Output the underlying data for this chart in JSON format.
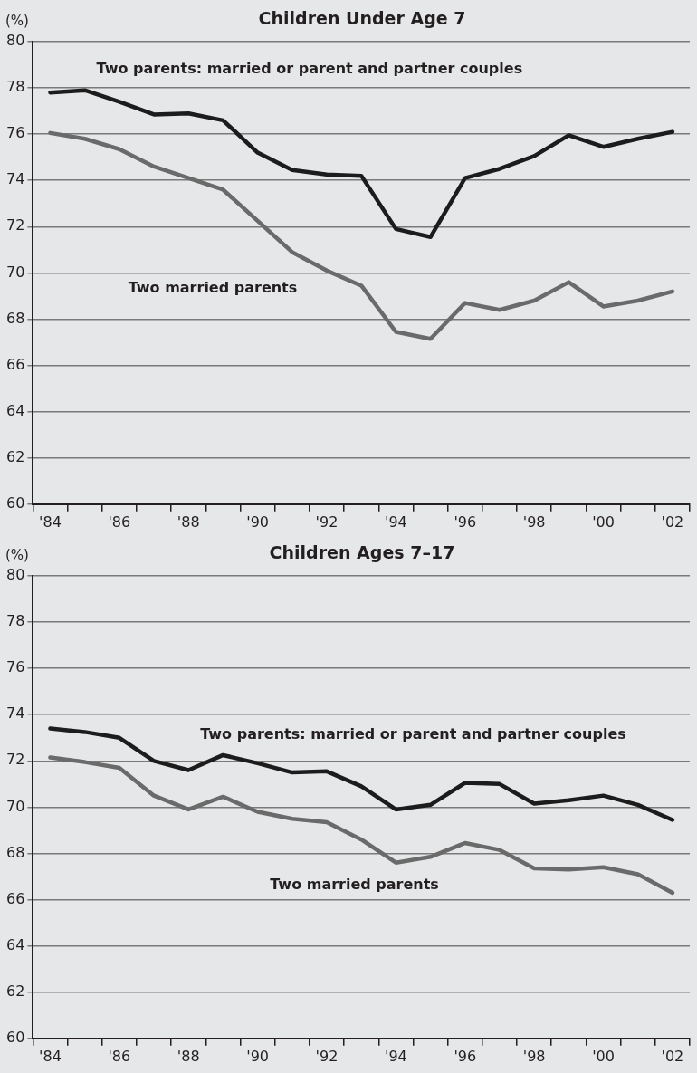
{
  "chart_data": [
    {
      "type": "line",
      "title": "Children Under Age 7",
      "ylabel": "(%)",
      "categories": [
        "'84",
        null,
        "'86",
        null,
        "'88",
        null,
        "'90",
        null,
        "'92",
        null,
        "'94",
        null,
        "'96",
        null,
        "'98",
        null,
        "'00",
        null,
        "'02"
      ],
      "series": [
        {
          "name": "Two parents: married or parent and partner couples",
          "color": "#1c1c1c",
          "values": [
            77.8,
            77.9,
            77.4,
            76.85,
            76.9,
            76.6,
            75.2,
            74.45,
            74.25,
            74.2,
            71.9,
            71.55,
            74.1,
            74.5,
            75.05,
            75.95,
            75.45,
            75.8,
            76.1
          ]
        },
        {
          "name": "Two married parents",
          "color": "#6a6a6a",
          "values": [
            76.05,
            75.8,
            75.35,
            74.6,
            74.1,
            73.6,
            72.25,
            70.9,
            70.1,
            69.45,
            67.45,
            67.15,
            68.7,
            68.4,
            68.8,
            69.6,
            68.55,
            68.8,
            69.2
          ]
        }
      ],
      "ylim": [
        60,
        80
      ],
      "yticks": [
        60,
        62,
        64,
        66,
        68,
        70,
        72,
        74,
        76,
        78,
        80
      ],
      "grid": "y",
      "legend": false,
      "marker": "none",
      "line_style": "solid"
    },
    {
      "type": "line",
      "title": "Children Ages 7–17",
      "ylabel": "(%)",
      "categories": [
        "'84",
        null,
        "'86",
        null,
        "'88",
        null,
        "'90",
        null,
        "'92",
        null,
        "'94",
        null,
        "'96",
        null,
        "'98",
        null,
        "'00",
        null,
        "'02"
      ],
      "series": [
        {
          "name": "Two parents: married or parent and partner couples",
          "color": "#1c1c1c",
          "values": [
            73.4,
            73.25,
            73.0,
            72.0,
            71.6,
            72.25,
            71.9,
            71.5,
            71.55,
            70.9,
            69.9,
            70.1,
            71.05,
            71.0,
            70.15,
            70.3,
            70.5,
            70.1,
            69.45
          ]
        },
        {
          "name": "Two married parents",
          "color": "#6a6a6a",
          "values": [
            72.15,
            71.95,
            71.7,
            70.5,
            69.9,
            70.45,
            69.8,
            69.5,
            69.35,
            68.6,
            67.6,
            67.85,
            68.45,
            68.15,
            67.35,
            67.3,
            67.4,
            67.1,
            66.3
          ]
        }
      ],
      "ylim": [
        60,
        80
      ],
      "yticks": [
        60,
        62,
        64,
        66,
        68,
        70,
        72,
        74,
        76,
        78,
        80
      ],
      "grid": "y",
      "legend": false,
      "marker": "none",
      "line_style": "solid"
    }
  ]
}
